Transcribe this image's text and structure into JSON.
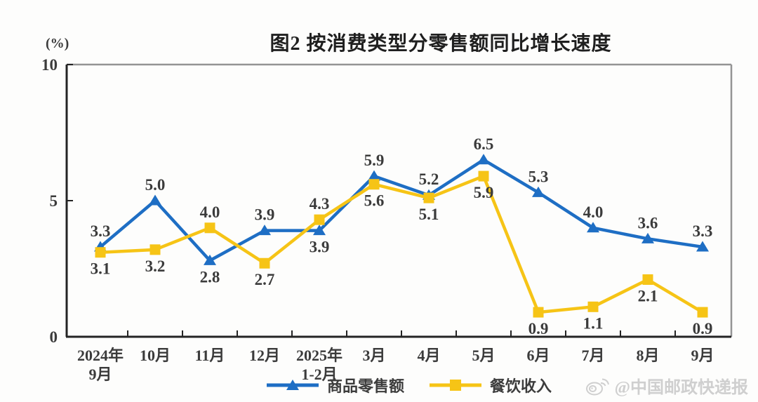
{
  "figure": {
    "title": "图2 按消费类型分零售额同比增长速度"
  },
  "watermark": {
    "text": "@中国邮政快递报",
    "icon": "weibo-icon",
    "color": "#cfcfcf"
  },
  "chart_data": {
    "type": "line",
    "title": "图2 按消费类型分零售额同比增长速度",
    "xlabel": "",
    "ylabel": "(%)",
    "ylim": [
      0,
      10
    ],
    "yticks": [
      0,
      5,
      10
    ],
    "grid": false,
    "legend_position": "bottom",
    "categories": [
      [
        "2024年",
        "9月"
      ],
      [
        "10月"
      ],
      [
        "11月"
      ],
      [
        "12月"
      ],
      [
        "2025年",
        "1-2月"
      ],
      [
        "3月"
      ],
      [
        "4月"
      ],
      [
        "5月"
      ],
      [
        "6月"
      ],
      [
        "7月"
      ],
      [
        "8月"
      ],
      [
        "9月"
      ]
    ],
    "series": [
      {
        "name": "商品零售额",
        "color": "#1e6ec4",
        "marker": "triangle",
        "values": [
          3.3,
          5.0,
          2.8,
          3.9,
          3.9,
          5.9,
          5.2,
          6.5,
          5.3,
          4.0,
          3.6,
          3.3
        ],
        "label_side": [
          "above",
          "above",
          "below",
          "above",
          "below",
          "above",
          "above",
          "above",
          "above",
          "above",
          "above",
          "above"
        ]
      },
      {
        "name": "餐饮收入",
        "color": "#f6c416",
        "marker": "square",
        "values": [
          3.1,
          3.2,
          4.0,
          2.7,
          4.3,
          5.6,
          5.1,
          5.9,
          0.9,
          1.1,
          2.1,
          0.9
        ],
        "label_side": [
          "below",
          "below",
          "above",
          "below",
          "above",
          "below",
          "below",
          "below",
          "below",
          "below",
          "below",
          "below"
        ]
      }
    ]
  }
}
